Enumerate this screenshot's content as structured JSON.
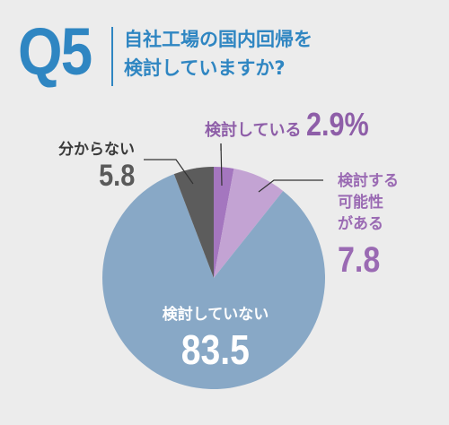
{
  "question": {
    "number": "Q5",
    "line1": "自社工場の国内回帰を",
    "line2": "検討していますか?"
  },
  "colors": {
    "accent": "#2f86c2",
    "background": "#ececec",
    "leader": "#333333"
  },
  "chart_data": {
    "type": "pie",
    "title": "自社工場の国内回帰を検討していますか?",
    "start": "12 o'clock, clockwise",
    "slices": [
      {
        "label": "検討している",
        "value": 2.9,
        "display": "2.9%",
        "color": "#a476bf"
      },
      {
        "label": "検討する可能性がある",
        "value": 7.8,
        "display": "7.8",
        "color": "#c3a3d3"
      },
      {
        "label": "検討していない",
        "value": 83.5,
        "display": "83.5",
        "color": "#88a8c6"
      },
      {
        "label": "分からない",
        "value": 5.8,
        "display": "5.8",
        "color": "#5c5c5c"
      }
    ]
  },
  "labels": {
    "kento": {
      "cat": "検討している",
      "val": "2.9%"
    },
    "kanou": {
      "l1": "検討する",
      "l2": "可能性",
      "l3": "がある",
      "val": "7.8"
    },
    "shinai": {
      "cat": "検討していない",
      "val": "83.5"
    },
    "wakaranai": {
      "cat": "分からない",
      "val": "5.8"
    }
  }
}
